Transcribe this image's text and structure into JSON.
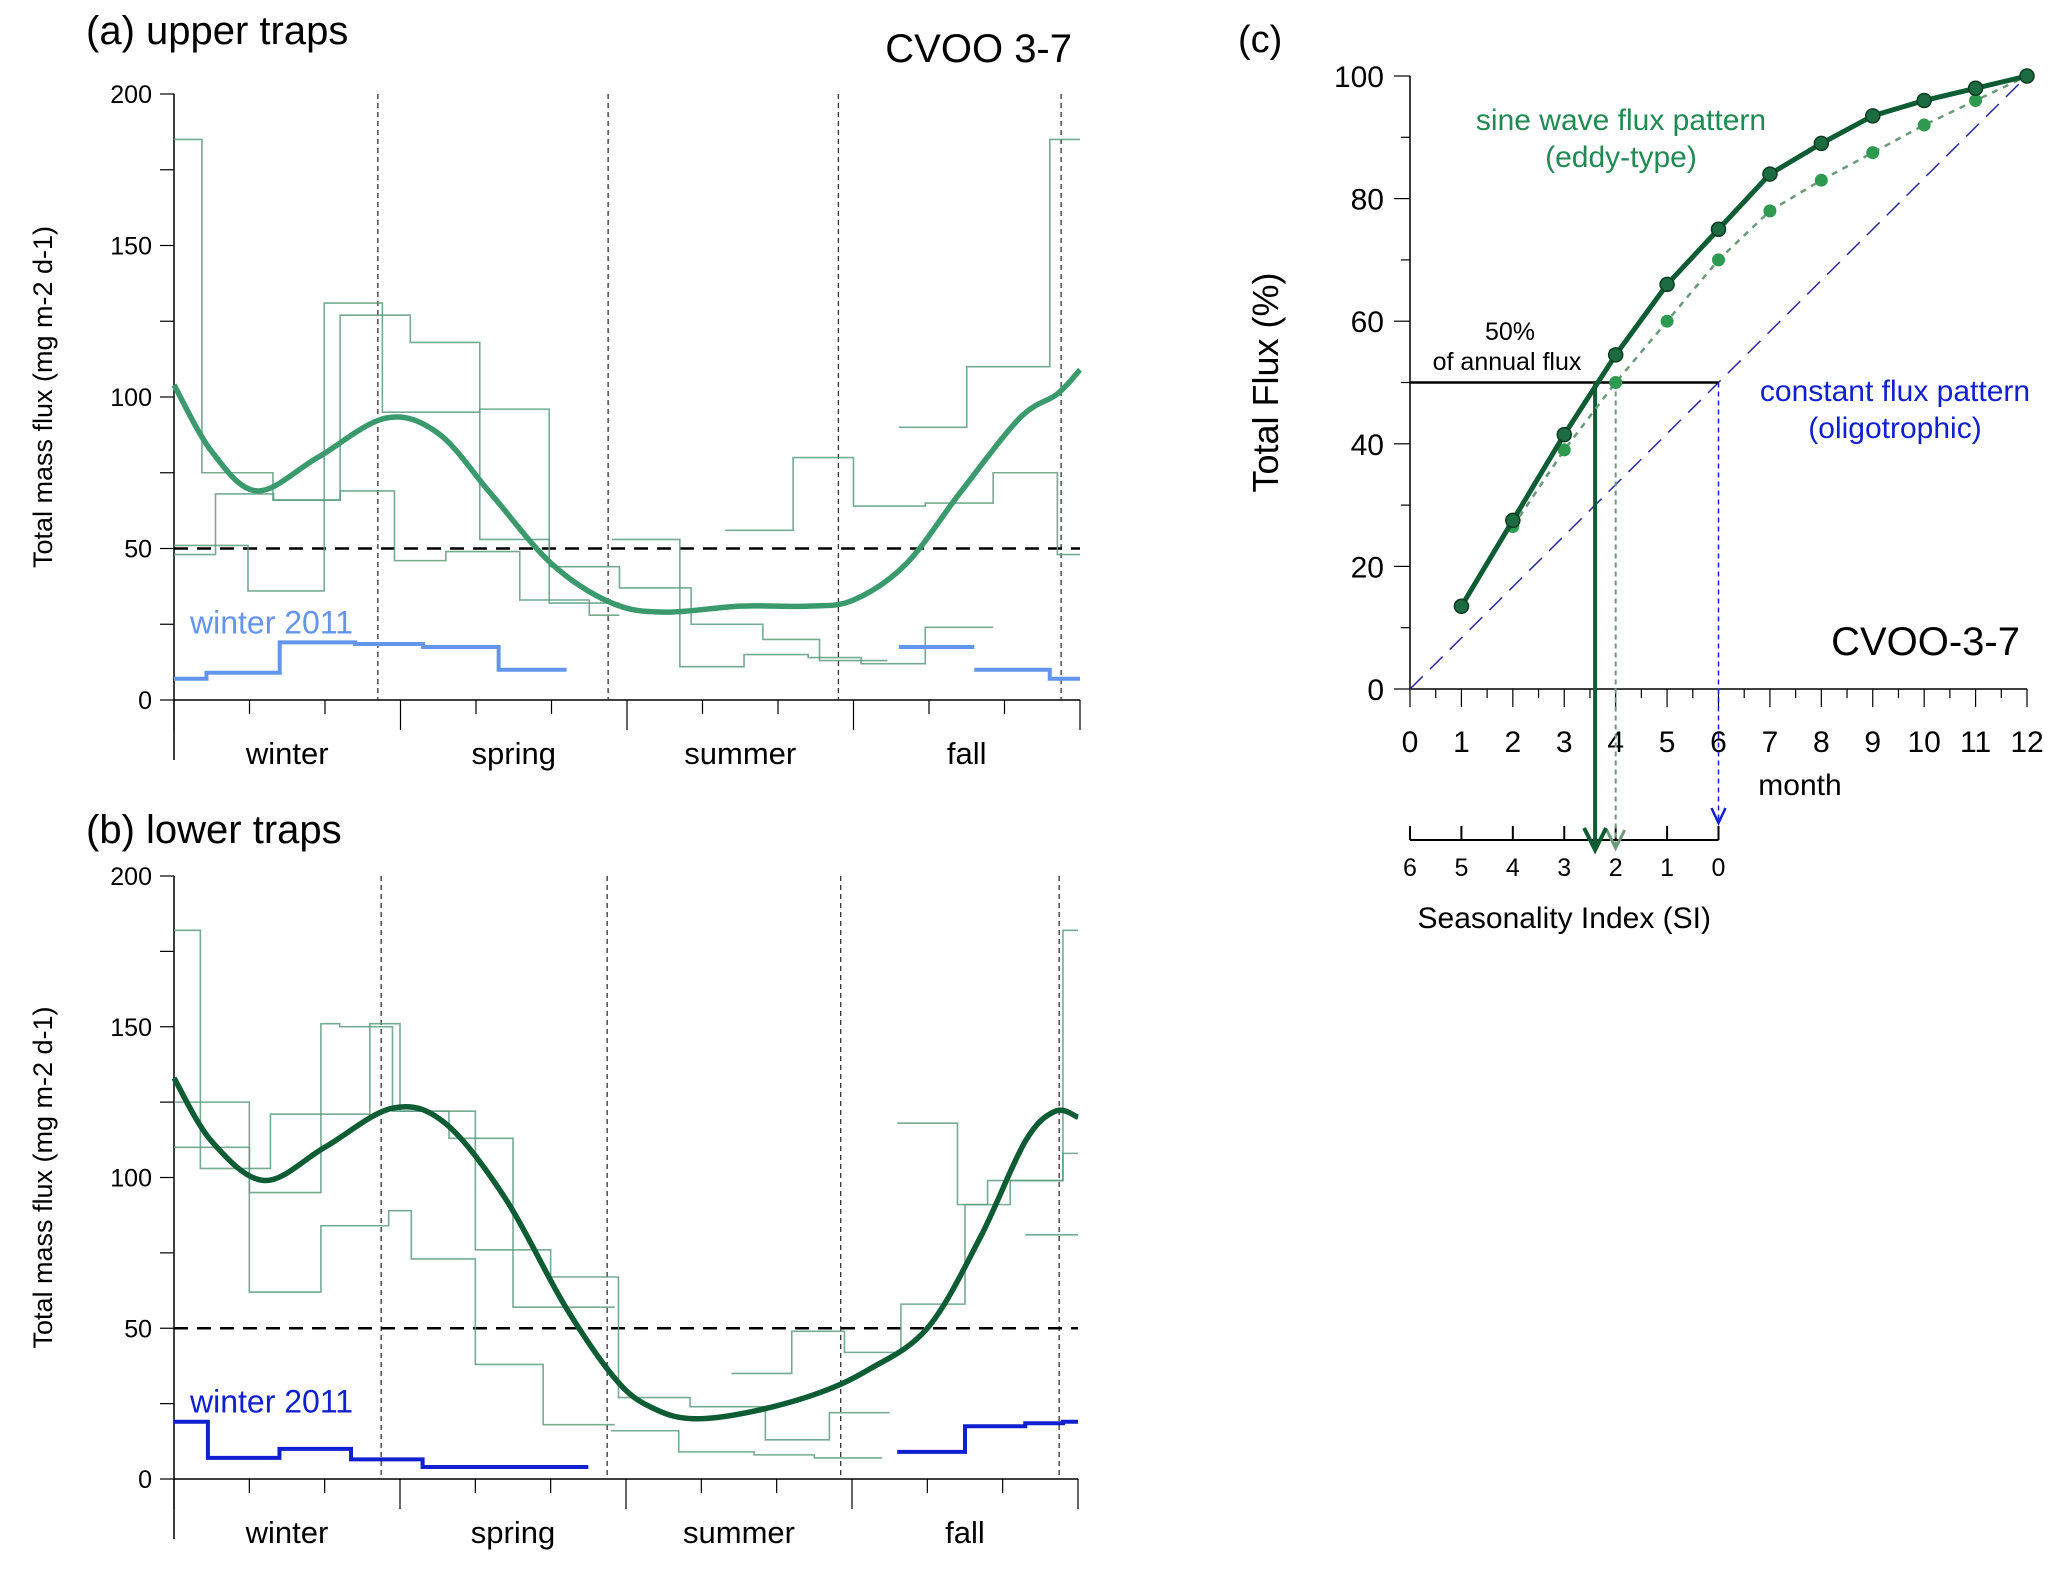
{
  "chart_data": [
    {
      "type": "line",
      "panel_label": "(a) upper traps",
      "site_label": "CVOO 3-7",
      "ylabel": "Total mass flux (mg m-2 d-1)",
      "ylim": [
        0,
        200
      ],
      "yticks": [
        "0",
        "50",
        "100",
        "150",
        "200"
      ],
      "season_labels": [
        "winter",
        "spring",
        "summer",
        "fall"
      ],
      "annotation": "winter 2011",
      "reference_line": 50,
      "season_dividers": [
        2.7,
        5.75,
        8.8,
        11.75
      ],
      "step_series": [
        {
          "edges": [
            0,
            0.37,
            1.31,
            2.2,
            3.13,
            4.05,
            4.97,
            5.9
          ],
          "values": [
            185,
            75,
            66,
            127,
            118,
            53,
            32
          ]
        },
        {
          "edges": [
            0,
            0.55,
            1.32,
            2.2,
            2.92,
            3.6,
            4.58,
            5.5,
            5.9
          ],
          "values": [
            48,
            68,
            66,
            69,
            46,
            49,
            33,
            28
          ]
        },
        {
          "edges": [
            0,
            0.98,
            1.99,
            2.76,
            4.05,
            4.97,
            5.9,
            6.85,
            7.8,
            8.55,
            9.45
          ],
          "values": [
            51,
            36,
            131,
            95,
            96,
            44,
            37,
            25,
            20,
            13
          ]
        },
        {
          "edges": [
            5.8,
            6.7,
            7.55,
            8.4,
            9.1,
            9.95,
            10.85
          ],
          "values": [
            53,
            11,
            15,
            14,
            12,
            24
          ]
        },
        {
          "edges": [
            7.3,
            8.2,
            9.0,
            9.95,
            10.85,
            11.7,
            12
          ],
          "values": [
            56,
            80,
            64,
            65,
            75,
            48
          ]
        },
        {
          "edges": [
            9.6,
            10.5,
            11.6,
            12
          ],
          "values": [
            90,
            110,
            185
          ]
        }
      ],
      "smooth": {
        "x": [
          0,
          0.5,
          1.1,
          1.9,
          2.8,
          3.5,
          4.2,
          5.0,
          5.8,
          6.5,
          7.5,
          8.4,
          9.0,
          9.7,
          10.4,
          11.2,
          11.7,
          12
        ],
        "y": [
          104,
          82,
          69,
          80,
          93,
          88,
          68,
          45,
          32,
          29,
          31,
          31,
          33,
          45,
          68,
          93,
          101,
          109
        ]
      },
      "winter2011": [
        {
          "edges": [
            0,
            0.43,
            1.4,
            2.4,
            3.3,
            4.3,
            5.2
          ],
          "values": [
            7,
            9,
            19,
            18.5,
            17.5,
            10
          ]
        },
        {
          "edges": [
            9.6,
            10.6
          ],
          "values": [
            17.5
          ]
        },
        {
          "edges": [
            10.6,
            11.6,
            12
          ],
          "values": [
            10,
            7
          ]
        }
      ]
    },
    {
      "type": "line",
      "panel_label": "(b) lower traps",
      "ylabel": "Total mass flux (mg m-2 d-1)",
      "ylim": [
        0,
        200
      ],
      "yticks": [
        "0",
        "50",
        "100",
        "150",
        "200"
      ],
      "season_labels": [
        "winter",
        "spring",
        "summer",
        "fall"
      ],
      "annotation": "winter 2011",
      "reference_line": 50,
      "season_dividers": [
        2.75,
        5.75,
        8.85,
        11.75
      ],
      "step_series": [
        {
          "edges": [
            0,
            0.35,
            1.0,
            1.95,
            2.85,
            3.15,
            4.0,
            4.9,
            5.85
          ],
          "values": [
            182,
            103,
            62,
            84,
            89,
            73,
            38,
            18
          ]
        },
        {
          "edges": [
            0,
            1.0,
            1.28,
            1.95,
            2.2,
            2.9,
            3.65,
            4.5,
            5.85
          ],
          "values": [
            125,
            103,
            121,
            151,
            150,
            122,
            113,
            57
          ]
        },
        {
          "edges": [
            0,
            1.0,
            1.95,
            2.6,
            3.0,
            4.0,
            5.0,
            5.9,
            6.85,
            7.85,
            8.7,
            9.5
          ],
          "values": [
            110,
            95,
            121,
            151,
            122,
            76,
            67,
            27,
            24,
            13,
            22
          ]
        },
        {
          "edges": [
            5.8,
            6.7,
            7.7,
            8.5,
            9.4
          ],
          "values": [
            16,
            9,
            8,
            7
          ]
        },
        {
          "edges": [
            7.4,
            8.2,
            8.9,
            9.65,
            10.5,
            11.1,
            11.8,
            12
          ],
          "values": [
            35,
            49,
            42,
            58,
            91,
            99,
            108
          ]
        },
        {
          "edges": [
            9.6,
            10.4,
            10.8,
            11.8,
            12
          ],
          "values": [
            118,
            91,
            99,
            182
          ]
        },
        {
          "edges": [
            11.3,
            12
          ],
          "values": [
            81
          ]
        }
      ],
      "smooth": {
        "x": [
          0,
          0.5,
          1.2,
          2.0,
          2.9,
          3.6,
          4.4,
          5.2,
          5.9,
          6.4,
          6.9,
          7.6,
          8.5,
          9.2,
          10.0,
          10.7,
          11.3,
          11.7,
          12
        ],
        "y": [
          133,
          112,
          99,
          110,
          123,
          118,
          93,
          57,
          32,
          23,
          20,
          22,
          28,
          36,
          50,
          80,
          112,
          122,
          120
        ]
      },
      "winter2011": [
        {
          "edges": [
            0,
            0.45,
            1.4,
            2.35,
            3.3,
            5.5
          ],
          "values": [
            19,
            7,
            10,
            6.5,
            4
          ]
        },
        {
          "edges": [
            9.6,
            10.5,
            11.3,
            11.8,
            12
          ],
          "values": [
            9,
            17.5,
            18.5,
            19
          ]
        }
      ]
    },
    {
      "type": "line",
      "panel_label": "(c)",
      "site_label": "CVOO-3-7",
      "ylabel": "Total Flux (%)",
      "xlabel": "month",
      "x2label": "Seasonality Index (SI)",
      "xlim": [
        0,
        12
      ],
      "ylim": [
        0,
        100
      ],
      "xticks": [
        "0",
        "1",
        "2",
        "3",
        "4",
        "5",
        "6",
        "7",
        "8",
        "9",
        "10",
        "11",
        "12"
      ],
      "yticks": [
        "0",
        "20",
        "40",
        "60",
        "80",
        "100"
      ],
      "si_ticks": [
        "6",
        "5",
        "4",
        "3",
        "2",
        "1",
        "0"
      ],
      "annotations": {
        "fifty": "50%",
        "fifty_sub": "of annual flux",
        "sine_title": "sine wave flux pattern",
        "sine_sub": "(eddy-type)",
        "const_title": "constant flux pattern",
        "const_sub": "(oligotrophic)"
      },
      "series": [
        {
          "style": "solid",
          "x": [
            1,
            2,
            3,
            4,
            5,
            6,
            7,
            8,
            9,
            10,
            11,
            12
          ],
          "y": [
            13.5,
            27.5,
            41.5,
            54.5,
            66,
            75,
            84,
            89,
            93.5,
            96,
            98,
            100
          ]
        },
        {
          "style": "dotted",
          "x": [
            2,
            3,
            4,
            5,
            6,
            7,
            8,
            9,
            10,
            11,
            12
          ],
          "y": [
            26.5,
            39,
            50,
            60,
            70,
            78,
            83,
            87.5,
            92,
            96,
            100
          ]
        },
        {
          "style": "constant",
          "x": [
            0,
            12
          ],
          "y": [
            0,
            100
          ]
        }
      ],
      "fifty_crossings": {
        "solid": 3.6,
        "dotted": 4,
        "constant": 6
      }
    }
  ],
  "colors": {
    "green_smooth_a": "#3a9a6e",
    "green_dark": "#0d5c34",
    "steps": "#5e9c80",
    "blue_light": "#6495ed",
    "blue_dark": "#1020d0",
    "dotted_green": "#2e9a50",
    "const_blue": "#2a2aa0"
  }
}
